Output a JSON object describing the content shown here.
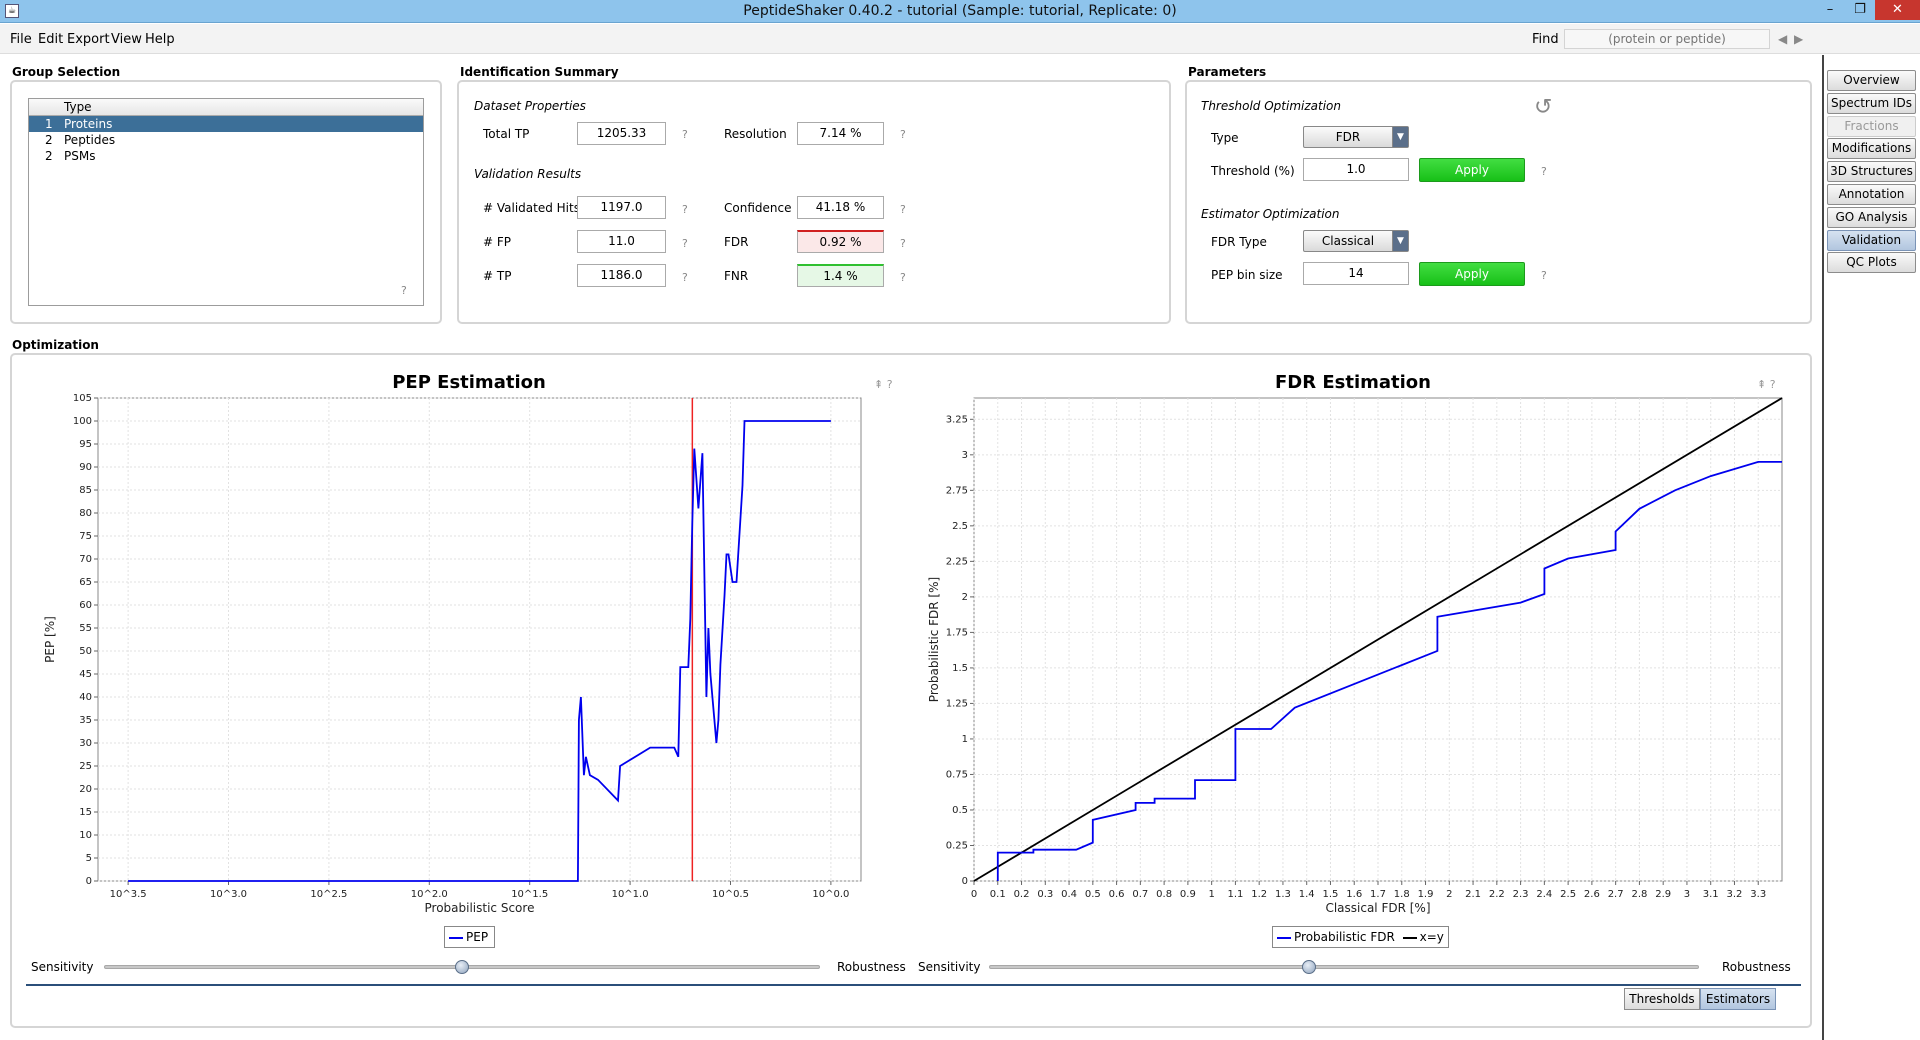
{
  "window": {
    "title": "PeptideShaker 0.40.2 - tutorial (Sample: tutorial, Replicate: 0)",
    "minimize": "–",
    "restore": "❐",
    "close": "✕"
  },
  "menu": {
    "items": [
      "File",
      "Edit",
      "Export",
      "View",
      "Help"
    ],
    "find_label": "Find",
    "find_placeholder": "(protein or peptide)"
  },
  "side_tabs": [
    {
      "label": "Overview",
      "state": "normal"
    },
    {
      "label": "Spectrum IDs",
      "state": "normal"
    },
    {
      "label": "Fractions",
      "state": "disabled"
    },
    {
      "label": "Modifications",
      "state": "normal"
    },
    {
      "label": "3D Structures",
      "state": "normal"
    },
    {
      "label": "Annotation",
      "state": "normal"
    },
    {
      "label": "GO Analysis",
      "state": "normal"
    },
    {
      "label": "Validation",
      "state": "active"
    },
    {
      "label": "QC Plots",
      "state": "normal"
    }
  ],
  "group_selection": {
    "title": "Group Selection",
    "column_header": "Type",
    "rows": [
      {
        "index": "1",
        "label": "Proteins",
        "selected": true
      },
      {
        "index": "2",
        "label": "Peptides",
        "selected": false
      },
      {
        "index": "2",
        "label": "PSMs",
        "selected": false
      }
    ]
  },
  "identification_summary": {
    "title": "Identification Summary",
    "dataset_heading": "Dataset Properties",
    "total_tp_label": "Total TP",
    "total_tp_value": "1205.33",
    "resolution_label": "Resolution",
    "resolution_value": "7.14 %",
    "validation_heading": "Validation Results",
    "validated_hits_label": "# Validated Hits",
    "validated_hits_value": "1197.0",
    "confidence_label": "Confidence",
    "confidence_value": "41.18 %",
    "fp_label": "# FP",
    "fp_value": "11.0",
    "fdr_label": "FDR",
    "fdr_value": "0.92 %",
    "tp_label": "# TP",
    "tp_value": "1186.0",
    "fnr_label": "FNR",
    "fnr_value": "1.4 %"
  },
  "parameters": {
    "title": "Parameters",
    "threshold_heading": "Threshold Optimization",
    "type_label": "Type",
    "type_value": "FDR",
    "threshold_label": "Threshold (%)",
    "threshold_value": "1.0",
    "apply_label": "Apply",
    "estimator_heading": "Estimator Optimization",
    "fdr_type_label": "FDR Type",
    "fdr_type_value": "Classical",
    "pep_bin_label": "PEP bin size",
    "pep_bin_value": "14"
  },
  "optimization": {
    "title": "Optimization",
    "sensitivity_label": "Sensitivity",
    "robustness_label": "Robustness",
    "pep_slider_fraction": 0.5,
    "fdr_slider_fraction": 0.45
  },
  "colors": {
    "series_blue": "#0000ee",
    "threshold_red": "#ee2222",
    "diagonal_black": "#000000",
    "apply_green": "#22c822",
    "selected_row": "#3c6f98"
  },
  "bottom_tabs": [
    {
      "label": "Thresholds",
      "state": "normal"
    },
    {
      "label": "Estimators",
      "state": "active"
    }
  ],
  "chart_data": [
    {
      "type": "line",
      "title": "PEP Estimation",
      "xlabel": "Probabilistic Score",
      "ylabel": "PEP [%]",
      "x_tick_labels": [
        "10^3.5",
        "10^3.0",
        "10^2.5",
        "10^2.0",
        "10^1.5",
        "10^1.0",
        "10^0.5",
        "10^0.0"
      ],
      "x_tick_values": [
        3.5,
        3.0,
        2.5,
        2.0,
        1.5,
        1.0,
        0.5,
        0.0
      ],
      "xlim": [
        3.65,
        -0.15
      ],
      "ylim": [
        0,
        105
      ],
      "y_ticks": [
        0,
        5,
        10,
        15,
        20,
        25,
        30,
        35,
        40,
        45,
        50,
        55,
        60,
        65,
        70,
        75,
        80,
        85,
        90,
        95,
        100,
        105
      ],
      "grid": true,
      "legend": [
        "PEP"
      ],
      "threshold_x": 0.69,
      "series": [
        {
          "name": "PEP",
          "x": [
            3.5,
            3.0,
            2.0,
            1.3,
            1.26,
            1.255,
            1.245,
            1.23,
            1.22,
            1.2,
            1.16,
            1.06,
            1.05,
            0.9,
            0.78,
            0.76,
            0.75,
            0.71,
            0.7,
            0.69,
            0.68,
            0.66,
            0.64,
            0.62,
            0.61,
            0.6,
            0.58,
            0.57,
            0.56,
            0.55,
            0.53,
            0.52,
            0.51,
            0.5,
            0.49,
            0.47,
            0.44,
            0.43,
            0.42,
            0.42,
            0.4,
            0.0
          ],
          "y": [
            0,
            0,
            0,
            0,
            0,
            35,
            40,
            23,
            27,
            23,
            22,
            17.5,
            25,
            29,
            29,
            27,
            46.5,
            46.5,
            57,
            78,
            94,
            81,
            93,
            40,
            55,
            45,
            35,
            30,
            35,
            47,
            62,
            71,
            71,
            68,
            65,
            65,
            86,
            100,
            100,
            100,
            100,
            100
          ]
        }
      ]
    },
    {
      "type": "line",
      "title": "FDR Estimation",
      "xlabel": "Classical FDR [%]",
      "ylabel": "Probabilistic FDR [%]",
      "x_ticks": [
        0.0,
        0.1,
        0.2,
        0.3,
        0.4,
        0.5,
        0.6,
        0.7,
        0.8,
        0.9,
        1.0,
        1.1,
        1.2,
        1.3,
        1.4,
        1.5,
        1.6,
        1.7,
        1.8,
        1.9,
        2.0,
        2.1,
        2.2,
        2.3,
        2.4,
        2.5,
        2.6,
        2.7,
        2.8,
        2.9,
        3.0,
        3.1,
        3.2,
        3.3
      ],
      "y_ticks": [
        0.0,
        0.25,
        0.5,
        0.75,
        1.0,
        1.25,
        1.5,
        1.75,
        2.0,
        2.25,
        2.5,
        2.75,
        3.0,
        3.25
      ],
      "xlim": [
        0,
        3.4
      ],
      "ylim": [
        0,
        3.4
      ],
      "grid": true,
      "legend": [
        "Probabilistic FDR",
        "x=y"
      ],
      "series": [
        {
          "name": "Probabilistic FDR",
          "x": [
            0.1,
            0.1,
            0.25,
            0.25,
            0.43,
            0.5,
            0.5,
            0.68,
            0.68,
            0.76,
            0.76,
            0.93,
            0.93,
            1.1,
            1.1,
            1.25,
            1.35,
            1.95,
            1.95,
            2.3,
            2.4,
            2.4,
            2.5,
            2.7,
            2.7,
            2.8,
            2.95,
            2.95,
            3.1,
            3.3,
            3.4
          ],
          "y": [
            0.0,
            0.2,
            0.2,
            0.22,
            0.22,
            0.27,
            0.43,
            0.5,
            0.55,
            0.55,
            0.58,
            0.58,
            0.71,
            0.71,
            1.07,
            1.07,
            1.22,
            1.62,
            1.86,
            1.96,
            2.02,
            2.2,
            2.27,
            2.33,
            2.46,
            2.62,
            2.75,
            2.75,
            2.85,
            2.95,
            2.95
          ]
        },
        {
          "name": "x=y",
          "x": [
            0,
            3.4
          ],
          "y": [
            0,
            3.4
          ]
        }
      ]
    }
  ]
}
